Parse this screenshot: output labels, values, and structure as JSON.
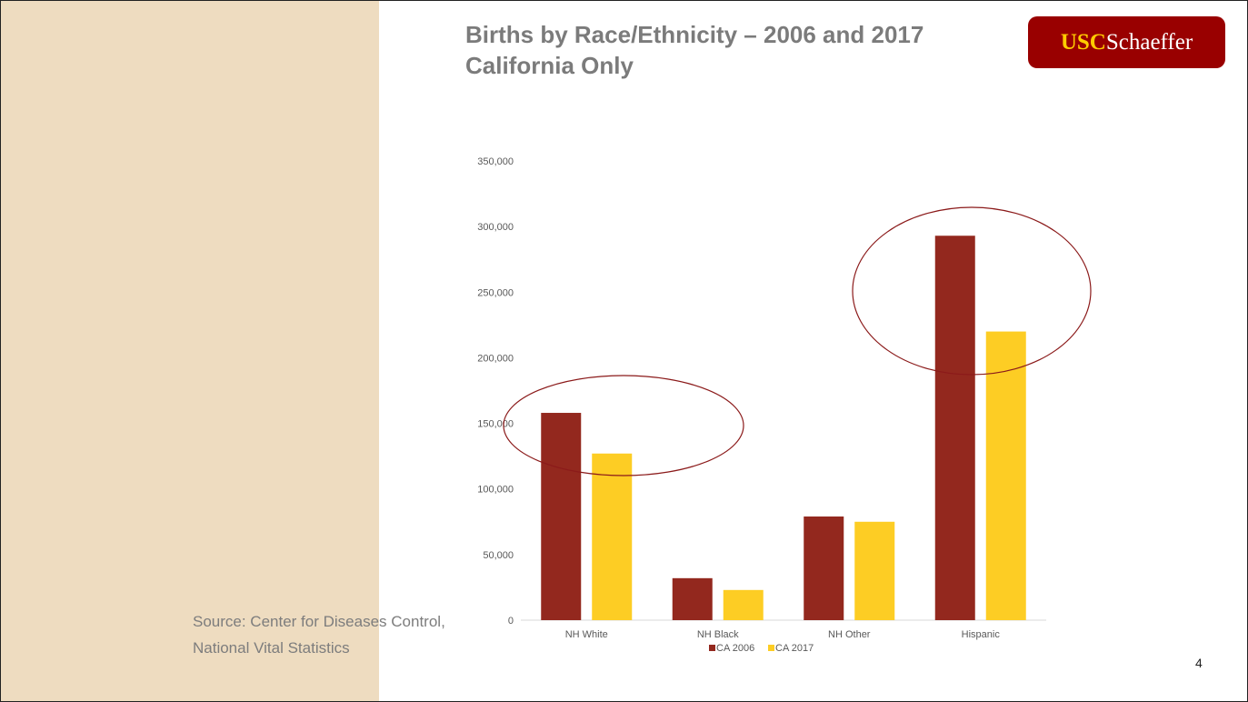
{
  "slide": {
    "title": "Births by Race/Ethnicity – 2006 and 2017 California Only",
    "logo": {
      "part1": "USC",
      "part2": "Schaeffer"
    },
    "source": "Source: Center for Diseases Control, National Vital Statistics",
    "page_number": "4"
  },
  "colors": {
    "side_panel": "#eedcc0",
    "title_text": "#7b7b7b",
    "logo_bg": "#990000",
    "logo_accent": "#ffcc00",
    "highlight_ellipse": "#8b1a1a"
  },
  "chart_data": {
    "type": "bar",
    "categories": [
      "NH White",
      "NH Black",
      "NH Other",
      "Hispanic"
    ],
    "series": [
      {
        "name": "CA 2006",
        "color": "#93281e",
        "values": [
          158000,
          32000,
          79000,
          293000
        ]
      },
      {
        "name": "CA 2017",
        "color": "#fdcd24",
        "values": [
          127000,
          23000,
          75000,
          220000
        ]
      }
    ],
    "ylim": [
      0,
      350000
    ],
    "yticks": [
      "0",
      "50,000",
      "100,000",
      "150,000",
      "200,000",
      "250,000",
      "300,000",
      "350,000"
    ],
    "ytick_values": [
      0,
      50000,
      100000,
      150000,
      200000,
      250000,
      300000,
      350000
    ],
    "legend_position": "bottom",
    "grid": false,
    "highlighted_categories": [
      "NH White",
      "Hispanic"
    ]
  }
}
